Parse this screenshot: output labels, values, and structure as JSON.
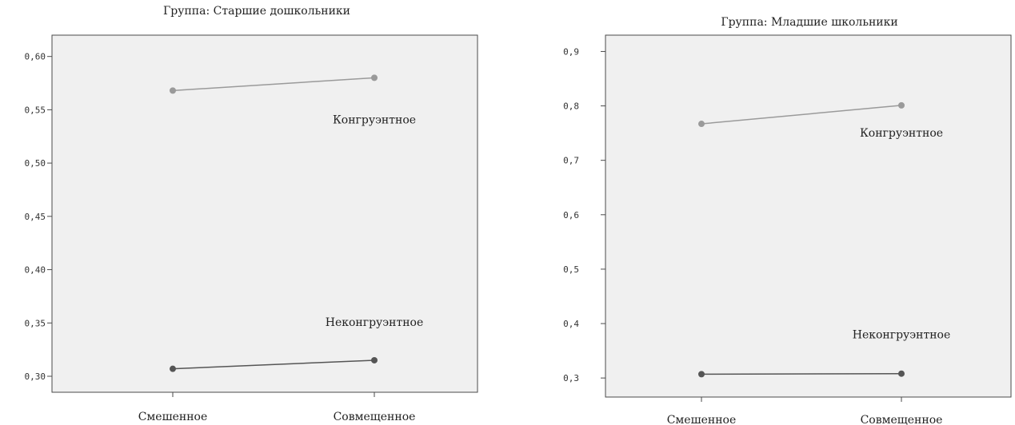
{
  "chart_data": [
    {
      "type": "line",
      "title": "Группа: Старшие дошкольники",
      "categories": [
        "Смешенное",
        "Совмещенное"
      ],
      "ylim": [
        0.285,
        0.62
      ],
      "yticks": [
        "0,30",
        "0,35",
        "0,40",
        "0,45",
        "0,50",
        "0,55",
        "0,60"
      ],
      "ytick_values": [
        0.3,
        0.35,
        0.4,
        0.45,
        0.5,
        0.55,
        0.6
      ],
      "grid": false,
      "series": [
        {
          "name": "Конгруэнтное",
          "values": [
            0.568,
            0.58
          ],
          "color": "#9a9a9a"
        },
        {
          "name": "Неконгруэнтное",
          "values": [
            0.307,
            0.315
          ],
          "color": "#555555"
        }
      ]
    },
    {
      "type": "line",
      "title": "Группа: Младшие школьники",
      "categories": [
        "Смешенное",
        "Совмещенное"
      ],
      "ylim": [
        0.265,
        0.93
      ],
      "yticks": [
        "0,3",
        "0,4",
        "0,5",
        "0,6",
        "0,7",
        "0,8",
        "0,9"
      ],
      "ytick_values": [
        0.3,
        0.4,
        0.5,
        0.6,
        0.7,
        0.8,
        0.9
      ],
      "grid": false,
      "series": [
        {
          "name": "Конгруэнтное",
          "values": [
            0.767,
            0.801
          ],
          "color": "#9a9a9a"
        },
        {
          "name": "Неконгруэнтное",
          "values": [
            0.307,
            0.308
          ],
          "color": "#555555"
        }
      ]
    }
  ]
}
